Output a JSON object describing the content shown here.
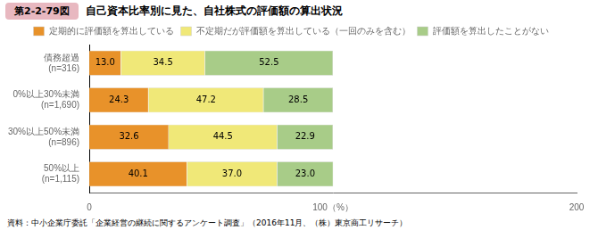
{
  "chart_data": {
    "type": "bar",
    "orientation": "horizontal",
    "stacked": true,
    "title": "自己資本比率別に見た、自社株式の評価額の算出状況",
    "annotations": [
      "第2-2-79図",
      "資料：中小企業庁委託「企業経営の継続に関するアンケート調査」（2016年11月、（株）東京商工リサーチ）"
    ],
    "categories": [
      "債務超過\n(n=316)",
      "0%以上30%未満\n(n=1,690)",
      "30%以上50%未満\n(n=896)",
      "50%以上\n(n=1,115)"
    ],
    "series": [
      {
        "name": "定期的に評価額を算出している",
        "color": "#E8922A",
        "values": [
          13.0,
          24.3,
          32.6,
          40.1
        ],
        "value_labels": [
          "13.0",
          "24.3",
          "32.6",
          "40.1"
        ]
      },
      {
        "name": "不定期だが評価額を算出している（一回のみを含む）",
        "color": "#F0E878",
        "values": [
          34.5,
          47.2,
          44.5,
          37.0
        ],
        "value_labels": [
          "34.5",
          "47.2",
          "44.5",
          "37.0"
        ]
      },
      {
        "name": "評価額を算出したことがない",
        "color": "#A8CC88",
        "values": [
          52.5,
          28.5,
          22.9,
          23.0
        ],
        "value_labels": [
          "52.5",
          "28.5",
          "22.9",
          "23.0"
        ]
      }
    ],
    "xlim": [
      0,
      200
    ],
    "xticks": [
      0,
      {
        "value": 100,
        "label": "100（%）"
      },
      200
    ],
    "data_labels": true,
    "legend": "top",
    "grid": false
  }
}
